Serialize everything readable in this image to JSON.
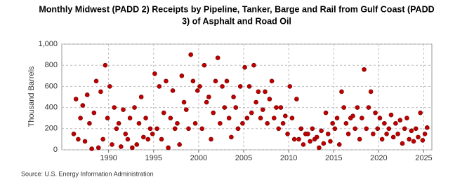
{
  "chart_data": {
    "type": "scatter",
    "title": [
      "Monthly Midwest (PADD 2) Receipts by Pipeline, Tanker, Barge and Rail from Gulf Coast (PADD",
      "3) of Asphalt and Road Oil"
    ],
    "y_label": "Thousand Barrels",
    "source": "Source: U.S. Energy Information Administration",
    "color": "#c00000",
    "grid": true,
    "xlim": [
      1984.8,
      2025.9
    ],
    "xticks": [
      1990,
      1995,
      2000,
      2005,
      2010,
      2015,
      2020,
      2025
    ],
    "ylim": [
      0,
      1000
    ],
    "yticks": [
      0,
      200,
      400,
      600,
      800,
      {
        "value": 1000,
        "label": "1,000"
      }
    ],
    "x": [
      1986.125,
      1986.375,
      1986.625,
      1986.875,
      1987.125,
      1987.375,
      1987.625,
      1987.875,
      1988.125,
      1988.375,
      1988.625,
      1988.875,
      1989.125,
      1989.375,
      1989.625,
      1989.875,
      1990.125,
      1990.375,
      1990.625,
      1990.875,
      1991.125,
      1991.375,
      1991.625,
      1991.875,
      1992.125,
      1992.375,
      1992.625,
      1992.875,
      1993.125,
      1993.375,
      1993.625,
      1993.875,
      1994.125,
      1994.375,
      1994.625,
      1994.875,
      1995.125,
      1995.375,
      1995.625,
      1995.875,
      1996.125,
      1996.375,
      1996.625,
      1996.875,
      1997.125,
      1997.375,
      1997.625,
      1997.875,
      1998.125,
      1998.375,
      1998.625,
      1998.875,
      1999.125,
      1999.375,
      1999.625,
      1999.875,
      2000.125,
      2000.375,
      2000.625,
      2000.875,
      2001.125,
      2001.375,
      2001.625,
      2001.875,
      2002.125,
      2002.375,
      2002.625,
      2002.875,
      2003.125,
      2003.375,
      2003.625,
      2003.875,
      2004.125,
      2004.375,
      2004.625,
      2004.875,
      2005.125,
      2005.375,
      2005.625,
      2005.875,
      2006.125,
      2006.375,
      2006.625,
      2006.875,
      2007.125,
      2007.375,
      2007.625,
      2007.875,
      2008.125,
      2008.375,
      2008.625,
      2008.875,
      2009.125,
      2009.375,
      2009.625,
      2009.875,
      2010.125,
      2010.375,
      2010.625,
      2010.875,
      2011.125,
      2011.375,
      2011.625,
      2011.875,
      2012.125,
      2012.375,
      2012.625,
      2012.875,
      2013.125,
      2013.375,
      2013.625,
      2013.875,
      2014.125,
      2014.375,
      2014.625,
      2014.875,
      2015.125,
      2015.375,
      2015.625,
      2015.875,
      2016.125,
      2016.375,
      2016.625,
      2016.875,
      2017.125,
      2017.375,
      2017.625,
      2017.875,
      2018.125,
      2018.375,
      2018.625,
      2018.875,
      2019.125,
      2019.375,
      2019.625,
      2019.875,
      2020.125,
      2020.375,
      2020.625,
      2020.875,
      2021.125,
      2021.375,
      2021.625,
      2021.875,
      2022.125,
      2022.375,
      2022.625,
      2022.875,
      2023.125,
      2023.375,
      2023.625,
      2023.875,
      2024.125,
      2024.375,
      2024.625,
      2024.875,
      2025.125,
      2025.375
    ],
    "y": [
      150,
      480,
      100,
      300,
      420,
      80,
      520,
      250,
      10,
      350,
      650,
      20,
      550,
      100,
      800,
      300,
      600,
      50,
      400,
      200,
      250,
      30,
      380,
      150,
      100,
      300,
      20,
      400,
      50,
      250,
      500,
      120,
      300,
      100,
      200,
      150,
      720,
      200,
      600,
      100,
      350,
      650,
      20,
      300,
      560,
      200,
      250,
      50,
      700,
      450,
      380,
      200,
      900,
      650,
      250,
      560,
      600,
      200,
      800,
      450,
      500,
      100,
      350,
      650,
      870,
      250,
      600,
      400,
      650,
      300,
      120,
      500,
      400,
      200,
      600,
      250,
      780,
      300,
      600,
      350,
      800,
      450,
      550,
      300,
      380,
      550,
      250,
      480,
      650,
      300,
      400,
      200,
      400,
      250,
      320,
      150,
      600,
      300,
      100,
      480,
      100,
      200,
      50,
      150,
      150,
      80,
      200,
      100,
      120,
      20,
      180,
      60,
      350,
      150,
      80,
      250,
      200,
      300,
      50,
      550,
      400,
      250,
      150,
      300,
      320,
      200,
      400,
      100,
      300,
      760,
      200,
      400,
      550,
      150,
      350,
      200,
      300,
      100,
      250,
      150,
      200,
      330,
      120,
      250,
      150,
      280,
      60,
      200,
      300,
      100,
      180,
      80,
      200,
      120,
      350,
      90,
      150,
      210
    ]
  }
}
